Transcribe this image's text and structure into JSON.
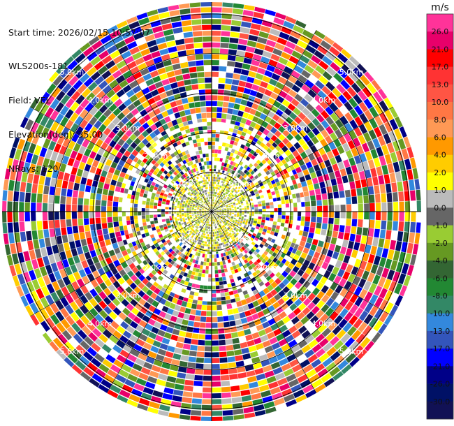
{
  "header": {
    "start_time": "Start time: 2026/02/15 10:57:07",
    "instrument": "WLS200s-181",
    "field": "Field: VEL",
    "elevation": "Elevation(deg): 35.00",
    "nrays": "NRays: 120"
  },
  "chart_data": {
    "type": "heatmap",
    "plot": "PPI (plan position indicator)",
    "field": "VEL",
    "nrays": 120,
    "elevation_deg": 35.0,
    "range_rings": [
      {
        "label": "1.0km",
        "range_km": 1.0
      },
      {
        "label": "2.0km",
        "range_km": 2.0
      },
      {
        "label": "3.0km",
        "range_km": 3.0
      },
      {
        "label": "4.0km",
        "range_km": 4.0
      },
      {
        "label": "5.0km",
        "range_km": 5.0
      }
    ],
    "colorbar": {
      "unit": "m/s",
      "ticks": [
        "26.0",
        "21.0",
        "17.0",
        "13.0",
        "10.0",
        "8.0",
        "6.0",
        "4.0",
        "2.0",
        "1.0",
        "0.0",
        "-1.0",
        "-2.0",
        "-4.0",
        "-6.0",
        "-8.0",
        "-10.0",
        "-13.0",
        "-17.0",
        "-21.0",
        "-26.0",
        "-30.0"
      ],
      "colors": [
        "#ff3399",
        "#e8006a",
        "#ff0000",
        "#ff3333",
        "#ff5544",
        "#ff7744",
        "#ff9955",
        "#ff9900",
        "#ffcc00",
        "#ffff00",
        "#bbbbbb",
        "#666666",
        "#99cc33",
        "#669922",
        "#336633",
        "#228833",
        "#338866",
        "#3388dd",
        "#3355bb",
        "#0000ff",
        "#000088",
        "#001166",
        "#111155"
      ]
    }
  }
}
